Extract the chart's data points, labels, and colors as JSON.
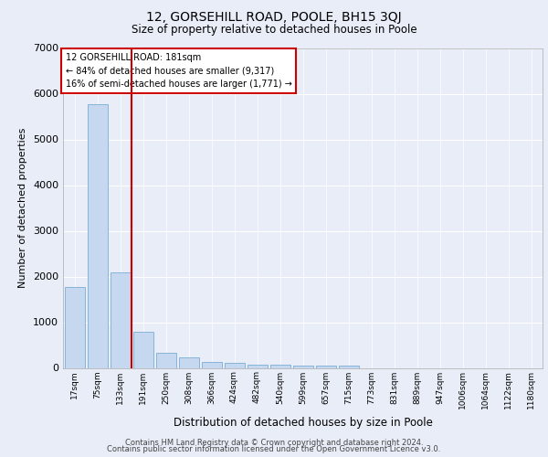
{
  "title": "12, GORSEHILL ROAD, POOLE, BH15 3QJ",
  "subtitle": "Size of property relative to detached houses in Poole",
  "xlabel": "Distribution of detached houses by size in Poole",
  "ylabel": "Number of detached properties",
  "bar_labels": [
    "17sqm",
    "75sqm",
    "133sqm",
    "191sqm",
    "250sqm",
    "308sqm",
    "366sqm",
    "424sqm",
    "482sqm",
    "540sqm",
    "599sqm",
    "657sqm",
    "715sqm",
    "773sqm",
    "831sqm",
    "889sqm",
    "947sqm",
    "1006sqm",
    "1064sqm",
    "1122sqm",
    "1180sqm"
  ],
  "bar_values": [
    1780,
    5780,
    2090,
    800,
    340,
    225,
    130,
    110,
    80,
    65,
    55,
    50,
    45,
    0,
    0,
    0,
    0,
    0,
    0,
    0,
    0
  ],
  "bar_color": "#c5d8ef",
  "bar_edge_color": "#7aadd4",
  "annotation_line1": "12 GORSEHILL ROAD: 181sqm",
  "annotation_line2": "← 84% of detached houses are smaller (9,317)",
  "annotation_line3": "16% of semi-detached houses are larger (1,771) →",
  "annotation_box_color": "#ffffff",
  "annotation_box_edge": "#cc0000",
  "vline_color": "#cc0000",
  "ylim": [
    0,
    7000
  ],
  "yticks": [
    0,
    1000,
    2000,
    3000,
    4000,
    5000,
    6000,
    7000
  ],
  "bg_color": "#e8edf8",
  "plot_bg_color": "#e8edf8",
  "grid_color": "#ffffff",
  "footer1": "Contains HM Land Registry data © Crown copyright and database right 2024.",
  "footer2": "Contains public sector information licensed under the Open Government Licence v3.0."
}
